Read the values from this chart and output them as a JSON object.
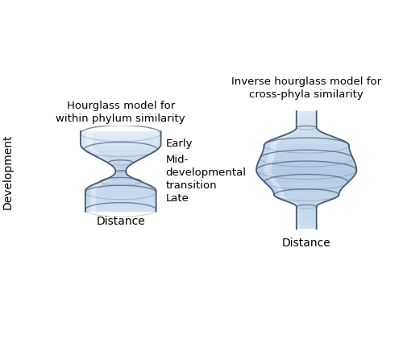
{
  "title_left": "Hourglass model for\nwithin phylum similarity",
  "title_right": "Inverse hourglass model for\ncross-phyla similarity",
  "ylabel": "Development",
  "xlabel_left": "Distance",
  "xlabel_right": "Distance",
  "label_early": "Early",
  "label_mid": "Mid-\ndevelopmental\ntransition",
  "label_late": "Late",
  "bg_color": "#ffffff",
  "fill_top": "#dce8f5",
  "fill_mid": "#b8cfe8",
  "fill_bottom": "#e8f0f8",
  "edge_color": "#4a5a72",
  "ellipse_alpha_front": 0.7,
  "ellipse_alpha_back": 0.3,
  "highlight_alpha": 0.35
}
